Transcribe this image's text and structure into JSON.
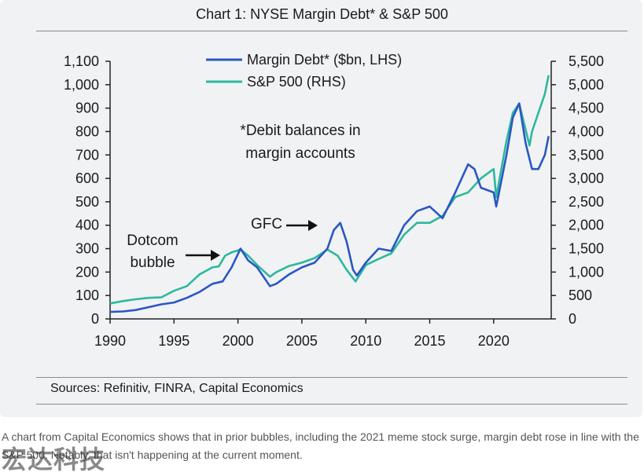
{
  "chart_data": {
    "type": "line",
    "title": "Chart 1: NYSE Margin Debt* & S&P 500",
    "x_ticks": [
      1990,
      1995,
      2000,
      2005,
      2010,
      2015,
      2020
    ],
    "xlim": [
      1990,
      2024.5
    ],
    "y_left_ticks": [
      "0",
      "100",
      "200",
      "300",
      "400",
      "500",
      "600",
      "700",
      "800",
      "900",
      "1,000",
      "1,100"
    ],
    "y_left_lim": [
      0,
      1100
    ],
    "y_right_ticks": [
      "0",
      "500",
      "1,000",
      "1,500",
      "2,000",
      "2,500",
      "3,000",
      "3,500",
      "4,000",
      "4,500",
      "5,000",
      "5,500"
    ],
    "y_right_lim": [
      0,
      5500
    ],
    "legend_position": "top-center",
    "series": [
      {
        "name": "Margin Debt* ($bn, LHS)",
        "axis": "left",
        "color": "#2a57c4",
        "x": [
          1990,
          1991,
          1992,
          1993,
          1994,
          1995,
          1996,
          1997,
          1998,
          1998.8,
          1999.5,
          2000.2,
          2000.8,
          2001.5,
          2002.5,
          2003,
          2004,
          2005,
          2006,
          2007,
          2007.5,
          2008,
          2008.5,
          2009,
          2009.3,
          2010,
          2011,
          2012,
          2013,
          2014,
          2015,
          2016,
          2017,
          2018,
          2018.5,
          2019,
          2020,
          2020.2,
          2021,
          2021.5,
          2022,
          2022.5,
          2023,
          2023.5,
          2024,
          2024.3
        ],
        "y": [
          30,
          32,
          38,
          50,
          62,
          70,
          90,
          115,
          150,
          160,
          220,
          300,
          250,
          220,
          140,
          150,
          190,
          220,
          240,
          300,
          380,
          410,
          330,
          210,
          185,
          240,
          300,
          290,
          400,
          460,
          480,
          430,
          540,
          660,
          640,
          560,
          540,
          480,
          700,
          860,
          920,
          750,
          640,
          640,
          700,
          780
        ]
      },
      {
        "name": "S&P 500 (RHS)",
        "axis": "right",
        "color": "#2db8a0",
        "x": [
          1990,
          1991,
          1992,
          1993,
          1994,
          1995,
          1996,
          1997,
          1998,
          1998.5,
          1999,
          1999.5,
          2000.2,
          2000.8,
          2001.5,
          2002.5,
          2003,
          2004,
          2005,
          2006,
          2007,
          2007.8,
          2008.5,
          2009.2,
          2010,
          2011,
          2012,
          2013,
          2014,
          2015,
          2016,
          2017,
          2018,
          2019,
          2020,
          2020.2,
          2021,
          2021.5,
          2022,
          2022.8,
          2023,
          2023.5,
          2024,
          2024.3
        ],
        "y": [
          330,
          380,
          420,
          450,
          460,
          600,
          700,
          950,
          1100,
          1120,
          1350,
          1420,
          1480,
          1350,
          1150,
          900,
          1000,
          1130,
          1200,
          1300,
          1480,
          1350,
          1050,
          800,
          1150,
          1280,
          1400,
          1800,
          2050,
          2050,
          2200,
          2600,
          2700,
          3000,
          3200,
          2600,
          3800,
          4400,
          4600,
          3700,
          4000,
          4400,
          4800,
          5200
        ]
      }
    ],
    "annotations": [
      {
        "text": "Dotcom",
        "label": "dotcom-label-line1"
      },
      {
        "text": "bubble",
        "label": "dotcom-label-line2"
      },
      {
        "text": "GFC",
        "label": "gfc-label"
      },
      {
        "text": "*Debit balances in",
        "label": "footnote-line1"
      },
      {
        "text": "margin accounts",
        "label": "footnote-line2"
      }
    ],
    "sources": "Sources: Refinitiv, FINRA, Capital Economics"
  },
  "caption": "A chart from Capital Economics shows that in prior bubbles, including the 2021 meme stock surge, margin debt rose in line with the S&P 500. Notably, that isn't happening at the current moment.",
  "watermark": "宏达科技"
}
